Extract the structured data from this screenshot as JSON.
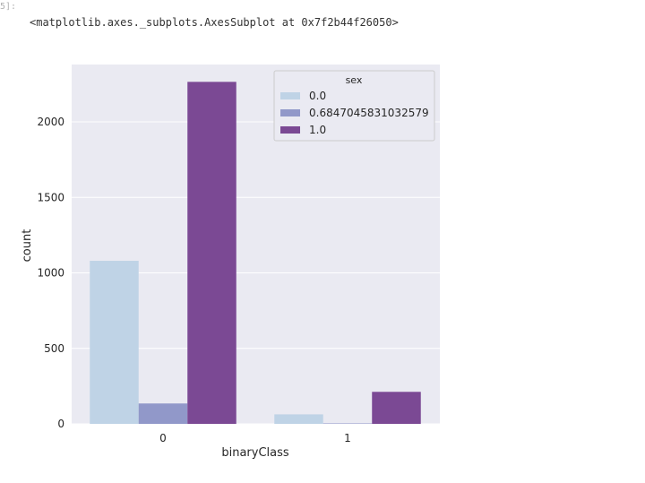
{
  "cell": {
    "prompt": "5]:",
    "output_text": "<matplotlib.axes._subplots.AxesSubplot at 0x7f2b44f26050>"
  },
  "chart_data": {
    "type": "bar",
    "xlabel": "binaryClass",
    "ylabel": "count",
    "categories": [
      "0",
      "1"
    ],
    "ylim": [
      0,
      2400
    ],
    "yticks": [
      0,
      500,
      1000,
      1500,
      2000
    ],
    "legend": {
      "title": "sex",
      "placement": "top-right"
    },
    "grid": true,
    "series": [
      {
        "name": "0.0",
        "color": "#bfd3e6",
        "values": [
          1080,
          63
        ]
      },
      {
        "name": "0.6847045831032579",
        "color": "#9198c9",
        "values": [
          135,
          3
        ]
      },
      {
        "name": "1.0",
        "color": "#7b4994",
        "values": [
          2265,
          212
        ]
      }
    ]
  }
}
